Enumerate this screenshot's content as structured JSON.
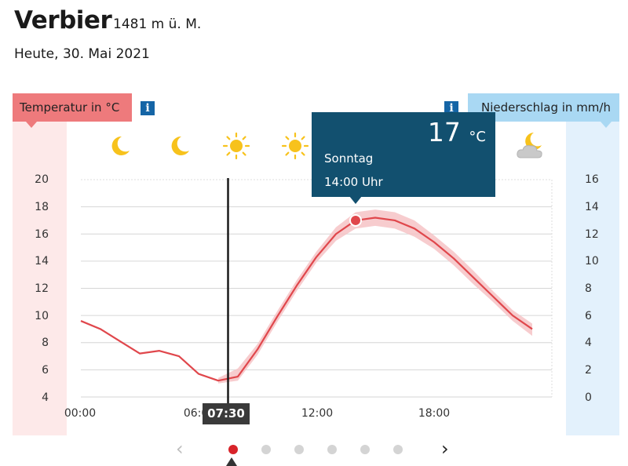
{
  "location": {
    "name": "Verbier",
    "elevation": "1481 m ü. M.",
    "date": "Heute, 30. Mai 2021"
  },
  "temperature_label": "Temperatur in °C",
  "precip_label": "Niederschlag in mm/h",
  "info_glyph": "i",
  "y_ticks_left": [
    "20",
    "18",
    "16",
    "14",
    "12",
    "10",
    "8",
    "6",
    "4"
  ],
  "y_ticks_right": [
    "16",
    "14",
    "12",
    "10",
    "8",
    "6",
    "4",
    "2",
    "0"
  ],
  "x_ticks": [
    "00:00",
    "06:00",
    "12:00",
    "18:00"
  ],
  "current_time": "07:30",
  "tooltip": {
    "temp": "17",
    "unit": "°C",
    "day": "Sonntag",
    "time": "14:00 Uhr"
  },
  "weather_icons": [
    "moon-icon",
    "moon-icon",
    "sun-icon",
    "sun-icon",
    "moon-cloud-icon"
  ],
  "nav": {
    "prev": "‹",
    "next": "›",
    "pages": 6,
    "active_page": 0
  },
  "colors": {
    "temp": "#e0474c",
    "temp_band": "#f6c3c5",
    "precip": "#a9d8f3",
    "tooltip": "#12506f",
    "accent": "#d8232a"
  },
  "chart_data": {
    "type": "line",
    "x_unit": "hour of day",
    "ylim": [
      4,
      20
    ],
    "y2lim": [
      0,
      16
    ],
    "series": [
      {
        "x": [
          0,
          1,
          2,
          3,
          4,
          5,
          6,
          7,
          8,
          9,
          10,
          11,
          12,
          13,
          14,
          15,
          16,
          17,
          18,
          19,
          20,
          21,
          22,
          23
        ],
        "values": [
          9.6,
          9.0,
          8.1,
          7.2,
          7.4,
          7.0,
          5.7,
          5.2,
          5.5,
          7.5,
          9.9,
          12.2,
          14.3,
          16.0,
          17.0,
          17.2,
          17.0,
          16.4,
          15.4,
          14.2,
          12.8,
          11.4,
          10.0,
          9.0
        ]
      }
    ],
    "band": {
      "x_start": 7,
      "lower": [
        5.0,
        5.2,
        7.1,
        9.5,
        11.8,
        13.9,
        15.5,
        16.4,
        16.6,
        16.4,
        15.8,
        14.9,
        13.7,
        12.3,
        11.0,
        9.6,
        8.5
      ],
      "upper": [
        5.4,
        6.1,
        7.9,
        10.3,
        12.6,
        14.7,
        16.5,
        17.6,
        17.8,
        17.6,
        17.0,
        15.9,
        14.7,
        13.3,
        11.8,
        10.4,
        9.4
      ]
    },
    "highlight_point": {
      "x": 14,
      "y": 17
    },
    "current_x": 7.5,
    "grid": true
  }
}
